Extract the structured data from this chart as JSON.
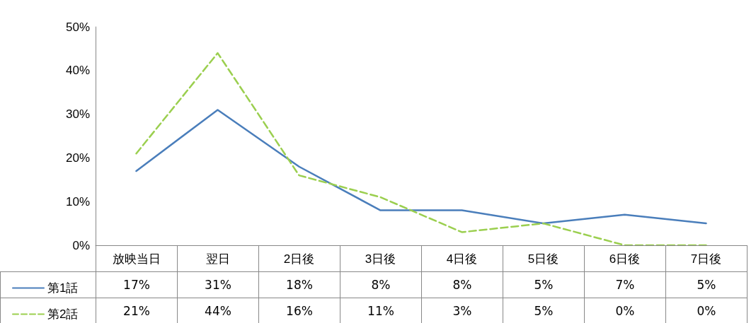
{
  "chart_data": {
    "type": "line",
    "categories": [
      "放映当日",
      "翌日",
      "2日後",
      "3日後",
      "4日後",
      "5日後",
      "6日後",
      "7日後"
    ],
    "series": [
      {
        "name": "第1話",
        "color": "#4a7ebb",
        "line_style": "solid",
        "values": [
          17,
          31,
          18,
          8,
          8,
          5,
          7,
          5
        ],
        "value_labels": [
          "17%",
          "31%",
          "18%",
          "8%",
          "8%",
          "5%",
          "7%",
          "5%"
        ]
      },
      {
        "name": "第2話",
        "color": "#9bcf4f",
        "line_style": "dashed",
        "values": [
          21,
          44,
          16,
          11,
          3,
          5,
          0,
          0
        ],
        "value_labels": [
          "21%",
          "44%",
          "16%",
          "11%",
          "3%",
          "5%",
          "0%",
          "0%"
        ]
      }
    ],
    "ylim": [
      0,
      50
    ],
    "yticks": [
      {
        "value": 0,
        "label": "0%"
      },
      {
        "value": 10,
        "label": "10%"
      },
      {
        "value": 20,
        "label": "20%"
      },
      {
        "value": 30,
        "label": "30%"
      },
      {
        "value": 40,
        "label": "40%"
      },
      {
        "value": 50,
        "label": "50%"
      }
    ],
    "grid": false,
    "legend": "bottom left",
    "marker": "none"
  }
}
